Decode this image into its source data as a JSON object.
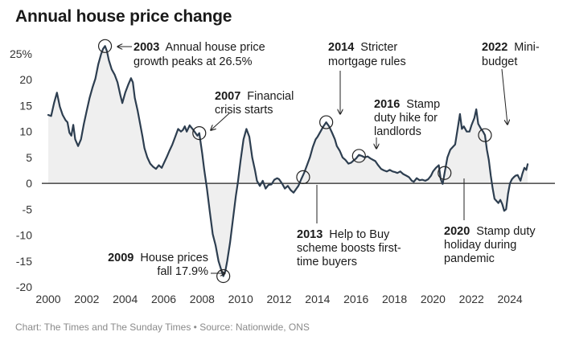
{
  "chart_data": {
    "type": "line",
    "title": "Annual house price change",
    "xlabel": "",
    "ylabel": "",
    "x_range": [
      2000,
      2025
    ],
    "ylim": [
      -20,
      27
    ],
    "x_ticks": [
      "2000",
      "2002",
      "2004",
      "2006",
      "2008",
      "2010",
      "2012",
      "2014",
      "2016",
      "2018",
      "2020",
      "2022",
      "2024"
    ],
    "y_ticks": [
      "25%",
      "20",
      "15",
      "10",
      "5",
      "0",
      "-5",
      "-10",
      "-15",
      "-20"
    ],
    "y_tick_values": [
      25,
      20,
      15,
      10,
      5,
      0,
      -5,
      -10,
      -15,
      -20
    ],
    "series": [
      {
        "name": "Annual house price change (%)",
        "color": "#2d3e50",
        "fill": "#efefef",
        "points": [
          [
            2000.0,
            13.2
          ],
          [
            2000.15,
            13.0
          ],
          [
            2000.3,
            15.5
          ],
          [
            2000.45,
            17.5
          ],
          [
            2000.6,
            14.8
          ],
          [
            2000.75,
            13.2
          ],
          [
            2000.9,
            12.2
          ],
          [
            2001.0,
            11.8
          ],
          [
            2001.1,
            9.8
          ],
          [
            2001.2,
            9.2
          ],
          [
            2001.3,
            11.3
          ],
          [
            2001.4,
            8.5
          ],
          [
            2001.55,
            7.2
          ],
          [
            2001.7,
            8.5
          ],
          [
            2001.85,
            11.5
          ],
          [
            2002.0,
            14.0
          ],
          [
            2002.15,
            16.5
          ],
          [
            2002.3,
            18.5
          ],
          [
            2002.45,
            20.2
          ],
          [
            2002.6,
            23.0
          ],
          [
            2002.75,
            25.0
          ],
          [
            2002.85,
            26.0
          ],
          [
            2002.95,
            26.5
          ],
          [
            2003.05,
            25.5
          ],
          [
            2003.15,
            23.8
          ],
          [
            2003.3,
            22.0
          ],
          [
            2003.45,
            21.0
          ],
          [
            2003.6,
            19.5
          ],
          [
            2003.75,
            17.0
          ],
          [
            2003.85,
            15.5
          ],
          [
            2004.0,
            17.5
          ],
          [
            2004.15,
            19.0
          ],
          [
            2004.3,
            20.3
          ],
          [
            2004.4,
            19.5
          ],
          [
            2004.5,
            16.5
          ],
          [
            2004.65,
            14.0
          ],
          [
            2004.8,
            11.0
          ],
          [
            2004.9,
            9.0
          ],
          [
            2005.0,
            6.8
          ],
          [
            2005.15,
            5.0
          ],
          [
            2005.3,
            3.8
          ],
          [
            2005.45,
            3.2
          ],
          [
            2005.6,
            2.8
          ],
          [
            2005.75,
            3.5
          ],
          [
            2005.9,
            3.0
          ],
          [
            2006.0,
            3.8
          ],
          [
            2006.15,
            5.0
          ],
          [
            2006.3,
            6.3
          ],
          [
            2006.45,
            7.5
          ],
          [
            2006.6,
            9.0
          ],
          [
            2006.75,
            10.5
          ],
          [
            2006.9,
            10.0
          ],
          [
            2007.0,
            10.3
          ],
          [
            2007.1,
            11.0
          ],
          [
            2007.2,
            10.0
          ],
          [
            2007.35,
            11.2
          ],
          [
            2007.5,
            10.5
          ],
          [
            2007.6,
            10.0
          ],
          [
            2007.75,
            9.2
          ],
          [
            2007.85,
            9.7
          ],
          [
            2008.0,
            5.8
          ],
          [
            2008.1,
            2.8
          ],
          [
            2008.25,
            -1.0
          ],
          [
            2008.4,
            -5.5
          ],
          [
            2008.55,
            -9.8
          ],
          [
            2008.7,
            -12.0
          ],
          [
            2008.85,
            -15.0
          ],
          [
            2009.0,
            -16.8
          ],
          [
            2009.1,
            -17.9
          ],
          [
            2009.2,
            -17.0
          ],
          [
            2009.3,
            -15.0
          ],
          [
            2009.45,
            -11.5
          ],
          [
            2009.6,
            -7.0
          ],
          [
            2009.75,
            -2.5
          ],
          [
            2009.85,
            0.0
          ],
          [
            2010.0,
            4.5
          ],
          [
            2010.15,
            8.5
          ],
          [
            2010.3,
            10.5
          ],
          [
            2010.45,
            9.0
          ],
          [
            2010.6,
            5.0
          ],
          [
            2010.75,
            2.5
          ],
          [
            2010.85,
            0.5
          ],
          [
            2011.0,
            -0.5
          ],
          [
            2011.15,
            0.5
          ],
          [
            2011.3,
            -1.0
          ],
          [
            2011.45,
            -0.3
          ],
          [
            2011.6,
            -0.2
          ],
          [
            2011.75,
            0.7
          ],
          [
            2011.9,
            1.0
          ],
          [
            2012.0,
            0.8
          ],
          [
            2012.15,
            0.0
          ],
          [
            2012.3,
            -1.0
          ],
          [
            2012.45,
            -0.5
          ],
          [
            2012.6,
            -1.3
          ],
          [
            2012.75,
            -1.8
          ],
          [
            2012.9,
            -1.0
          ],
          [
            2013.0,
            -0.5
          ],
          [
            2013.15,
            0.8
          ],
          [
            2013.3,
            2.0
          ],
          [
            2013.45,
            3.5
          ],
          [
            2013.6,
            5.0
          ],
          [
            2013.75,
            7.0
          ],
          [
            2013.9,
            8.5
          ],
          [
            2014.0,
            9.0
          ],
          [
            2014.15,
            10.0
          ],
          [
            2014.3,
            11.0
          ],
          [
            2014.45,
            11.8
          ],
          [
            2014.6,
            11.0
          ],
          [
            2014.75,
            9.8
          ],
          [
            2014.9,
            8.5
          ],
          [
            2015.0,
            7.2
          ],
          [
            2015.15,
            6.3
          ],
          [
            2015.3,
            5.0
          ],
          [
            2015.45,
            4.5
          ],
          [
            2015.6,
            3.8
          ],
          [
            2015.75,
            4.0
          ],
          [
            2015.9,
            4.5
          ],
          [
            2016.0,
            4.8
          ],
          [
            2016.15,
            5.5
          ],
          [
            2016.3,
            5.3
          ],
          [
            2016.45,
            5.0
          ],
          [
            2016.6,
            5.2
          ],
          [
            2016.75,
            4.8
          ],
          [
            2016.9,
            4.5
          ],
          [
            2017.0,
            4.3
          ],
          [
            2017.15,
            3.5
          ],
          [
            2017.3,
            2.8
          ],
          [
            2017.45,
            2.5
          ],
          [
            2017.6,
            2.3
          ],
          [
            2017.75,
            2.6
          ],
          [
            2017.9,
            2.3
          ],
          [
            2018.0,
            2.2
          ],
          [
            2018.15,
            2.0
          ],
          [
            2018.3,
            2.3
          ],
          [
            2018.45,
            1.8
          ],
          [
            2018.6,
            1.5
          ],
          [
            2018.75,
            1.2
          ],
          [
            2018.9,
            0.5
          ],
          [
            2019.0,
            0.3
          ],
          [
            2019.15,
            1.0
          ],
          [
            2019.3,
            0.6
          ],
          [
            2019.45,
            0.7
          ],
          [
            2019.6,
            0.5
          ],
          [
            2019.75,
            0.8
          ],
          [
            2019.9,
            1.5
          ],
          [
            2020.0,
            2.3
          ],
          [
            2020.15,
            3.0
          ],
          [
            2020.3,
            3.5
          ],
          [
            2020.4,
            0.8
          ],
          [
            2020.5,
            -0.1
          ],
          [
            2020.6,
            2.0
          ],
          [
            2020.75,
            5.0
          ],
          [
            2020.9,
            6.5
          ],
          [
            2021.0,
            6.9
          ],
          [
            2021.15,
            7.5
          ],
          [
            2021.3,
            11.0
          ],
          [
            2021.4,
            13.4
          ],
          [
            2021.5,
            10.5
          ],
          [
            2021.6,
            11.0
          ],
          [
            2021.75,
            10.0
          ],
          [
            2021.9,
            10.0
          ],
          [
            2022.0,
            11.2
          ],
          [
            2022.15,
            12.6
          ],
          [
            2022.25,
            14.3
          ],
          [
            2022.35,
            11.5
          ],
          [
            2022.5,
            10.5
          ],
          [
            2022.6,
            10.0
          ],
          [
            2022.7,
            9.3
          ],
          [
            2022.8,
            6.5
          ],
          [
            2022.9,
            4.5
          ],
          [
            2023.0,
            1.5
          ],
          [
            2023.1,
            -1.0
          ],
          [
            2023.2,
            -3.0
          ],
          [
            2023.3,
            -3.4
          ],
          [
            2023.4,
            -3.8
          ],
          [
            2023.5,
            -3.2
          ],
          [
            2023.6,
            -4.0
          ],
          [
            2023.7,
            -5.3
          ],
          [
            2023.8,
            -5.0
          ],
          [
            2023.9,
            -2.0
          ],
          [
            2024.0,
            0.0
          ],
          [
            2024.1,
            0.8
          ],
          [
            2024.2,
            1.2
          ],
          [
            2024.3,
            1.5
          ],
          [
            2024.4,
            1.6
          ],
          [
            2024.55,
            0.5
          ],
          [
            2024.65,
            1.9
          ],
          [
            2024.75,
            3.0
          ],
          [
            2024.85,
            2.6
          ],
          [
            2024.92,
            3.7
          ]
        ]
      }
    ],
    "annotations": [
      {
        "year": "2003",
        "text_lines": [
          "Annual house price",
          "growth peaks at 26.5%"
        ],
        "x": 2002.95,
        "y": 26.5
      },
      {
        "year": "2007",
        "text_lines": [
          "Financial",
          "crisis starts"
        ],
        "x": 2007.85,
        "y": 9.7
      },
      {
        "year": "2009",
        "text_lines": [
          "House prices",
          "fall 17.9%"
        ],
        "x": 2009.1,
        "y": -17.9
      },
      {
        "year": "2013",
        "text_lines": [
          "Help to Buy",
          "scheme boosts first-",
          "time buyers"
        ],
        "x": 2013.25,
        "y": 1.2
      },
      {
        "year": "2014",
        "text_lines": [
          "Stricter",
          "mortgage rules"
        ],
        "x": 2014.45,
        "y": 11.8
      },
      {
        "year": "2016",
        "text_lines": [
          "Stamp",
          "duty hike for",
          "landlords"
        ],
        "x": 2016.15,
        "y": 5.3
      },
      {
        "year": "2020",
        "text_lines": [
          "Stamp duty",
          "holiday during",
          "pandemic"
        ],
        "x": 2020.6,
        "y": 2.0
      },
      {
        "year": "2022",
        "text_lines": [
          "Mini-",
          "budget"
        ],
        "x": 2022.7,
        "y": 9.3
      }
    ],
    "grid": false,
    "legend": "none",
    "source": "Chart: The Times and The Sunday Times • Source: Nationwide, ONS"
  }
}
